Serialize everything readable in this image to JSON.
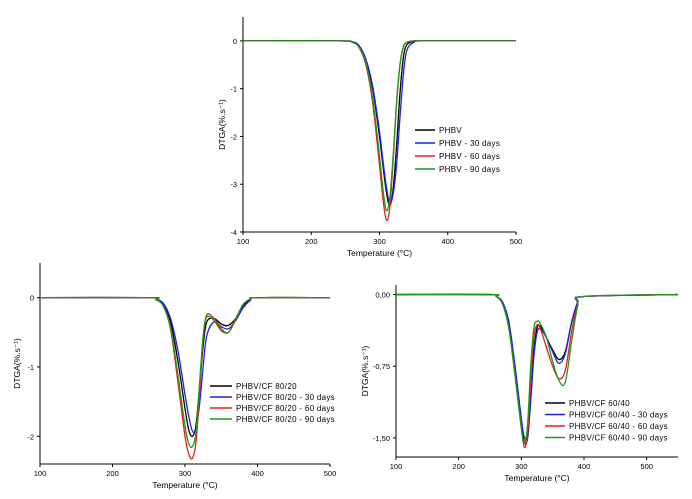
{
  "colors": {
    "black": "#000000",
    "blue": "#1f1fe0",
    "red": "#e3201b",
    "green": "#1a9a1a"
  },
  "chart_data": [
    {
      "type": "line",
      "xlabel": "Temperature (°C)",
      "ylabel": "DTGA(%.s⁻¹)",
      "xlim": [
        100,
        500
      ],
      "ylim": [
        -4,
        0.5
      ],
      "xticks": [
        100,
        200,
        300,
        400,
        500
      ],
      "yticks": [
        0,
        -1,
        -2,
        -3,
        -4
      ],
      "xtick_labels": [
        "100",
        "200",
        "300",
        "400",
        "500"
      ],
      "ytick_labels": [
        "0",
        "-1",
        "-2",
        "-3",
        "-4"
      ],
      "legend_position": "center-right",
      "x": [
        100,
        240,
        260,
        270,
        280,
        290,
        300,
        305,
        310,
        315,
        320,
        325,
        330,
        335,
        340,
        350,
        360,
        400,
        500
      ],
      "series": [
        {
          "name": "PHBV",
          "color": "#000000",
          "values": [
            0,
            0,
            -0.02,
            -0.1,
            -0.4,
            -1.0,
            -2.0,
            -2.6,
            -3.15,
            -3.45,
            -3.1,
            -2.2,
            -1.1,
            -0.35,
            -0.08,
            -0.01,
            0,
            0,
            0
          ]
        },
        {
          "name": "PHBV - 30 days",
          "color": "#1f1fe0",
          "values": [
            0,
            0,
            -0.02,
            -0.1,
            -0.38,
            -0.95,
            -1.9,
            -2.5,
            -3.05,
            -3.4,
            -3.2,
            -2.6,
            -1.6,
            -0.7,
            -0.2,
            -0.03,
            0,
            0,
            0
          ]
        },
        {
          "name": "PHBV - 60 days",
          "color": "#e3201b",
          "values": [
            0,
            0,
            -0.03,
            -0.14,
            -0.5,
            -1.3,
            -2.6,
            -3.3,
            -3.75,
            -3.5,
            -2.5,
            -1.3,
            -0.5,
            -0.12,
            -0.03,
            0,
            0,
            0,
            0
          ]
        },
        {
          "name": "PHBV - 90 days",
          "color": "#1a9a1a",
          "values": [
            0,
            0,
            -0.03,
            -0.13,
            -0.45,
            -1.2,
            -2.4,
            -3.1,
            -3.55,
            -3.3,
            -2.4,
            -1.3,
            -0.5,
            -0.13,
            -0.03,
            0,
            0,
            0,
            0
          ]
        }
      ]
    },
    {
      "type": "line",
      "xlabel": "Temperature (°C)",
      "ylabel": "DTGA(%.s⁻¹)",
      "xlim": [
        100,
        500
      ],
      "ylim": [
        -2.4,
        0.5
      ],
      "xticks": [
        100,
        200,
        300,
        400,
        500
      ],
      "yticks": [
        0,
        -1,
        -2
      ],
      "xtick_labels": [
        "100",
        "200",
        "300",
        "400",
        "500"
      ],
      "ytick_labels": [
        "0",
        "-1",
        "-2"
      ],
      "legend_position": "center-right",
      "x": [
        100,
        250,
        260,
        270,
        280,
        290,
        300,
        305,
        310,
        315,
        320,
        325,
        330,
        340,
        350,
        360,
        370,
        380,
        390,
        400,
        500
      ],
      "series": [
        {
          "name": "PHBV/CF 80/20",
          "color": "#000000",
          "values": [
            0,
            0,
            -0.02,
            -0.1,
            -0.35,
            -0.9,
            -1.6,
            -1.9,
            -2.0,
            -1.85,
            -1.3,
            -0.7,
            -0.35,
            -0.3,
            -0.38,
            -0.4,
            -0.3,
            -0.12,
            -0.03,
            0,
            0
          ]
        },
        {
          "name": "PHBV/CF 80/20 - 30 days",
          "color": "#1f1fe0",
          "values": [
            0,
            0,
            -0.02,
            -0.08,
            -0.3,
            -0.75,
            -1.4,
            -1.7,
            -1.92,
            -1.9,
            -1.55,
            -1.0,
            -0.55,
            -0.35,
            -0.42,
            -0.45,
            -0.33,
            -0.15,
            -0.04,
            0,
            0
          ]
        },
        {
          "name": "PHBV/CF 80/20 - 60 days",
          "color": "#e3201b",
          "values": [
            0,
            0,
            -0.03,
            -0.12,
            -0.45,
            -1.2,
            -2.0,
            -2.25,
            -2.32,
            -2.1,
            -1.4,
            -0.6,
            -0.25,
            -0.3,
            -0.45,
            -0.5,
            -0.3,
            -0.1,
            -0.02,
            0,
            0
          ]
        },
        {
          "name": "PHBV/CF 80/20 - 90 days",
          "color": "#1a9a1a",
          "values": [
            0,
            0,
            -0.03,
            -0.12,
            -0.42,
            -1.1,
            -1.85,
            -2.1,
            -2.15,
            -1.95,
            -1.25,
            -0.55,
            -0.28,
            -0.33,
            -0.48,
            -0.5,
            -0.32,
            -0.1,
            -0.02,
            0,
            0
          ]
        }
      ]
    },
    {
      "type": "line",
      "xlabel": "Temperature (°C)",
      "ylabel": "DTGA(%.s⁻¹)",
      "xlim": [
        100,
        550
      ],
      "ylim": [
        -1.7,
        0.1
      ],
      "xticks": [
        100,
        200,
        300,
        400,
        500
      ],
      "yticks": [
        0,
        -0.75,
        -1.5
      ],
      "xtick_labels": [
        "100",
        "200",
        "300",
        "400",
        "500"
      ],
      "ytick_labels": [
        "0,00",
        "-0,75",
        "-1,50"
      ],
      "legend_position": "bottom-right",
      "x": [
        100,
        250,
        260,
        270,
        280,
        290,
        300,
        305,
        310,
        315,
        320,
        325,
        330,
        340,
        350,
        360,
        370,
        380,
        390,
        400,
        550
      ],
      "series": [
        {
          "name": "PHBV/CF 60/40",
          "color": "#000000",
          "values": [
            0,
            0,
            -0.02,
            -0.08,
            -0.3,
            -0.8,
            -1.35,
            -1.55,
            -1.5,
            -1.1,
            -0.6,
            -0.35,
            -0.33,
            -0.45,
            -0.58,
            -0.68,
            -0.6,
            -0.3,
            -0.08,
            -0.02,
            0
          ]
        },
        {
          "name": "PHBV/CF 60/40 - 30 days",
          "color": "#1f1fe0",
          "values": [
            0,
            0,
            -0.02,
            -0.08,
            -0.28,
            -0.75,
            -1.3,
            -1.5,
            -1.45,
            -1.1,
            -0.65,
            -0.4,
            -0.36,
            -0.45,
            -0.6,
            -0.72,
            -0.62,
            -0.3,
            -0.08,
            -0.02,
            0
          ]
        },
        {
          "name": "PHBV/CF 60/40 - 60 days",
          "color": "#e3201b",
          "values": [
            0,
            0,
            -0.02,
            -0.1,
            -0.35,
            -0.85,
            -1.4,
            -1.6,
            -1.45,
            -0.9,
            -0.45,
            -0.32,
            -0.35,
            -0.55,
            -0.75,
            -0.88,
            -0.8,
            -0.4,
            -0.1,
            -0.02,
            0
          ]
        },
        {
          "name": "PHBV/CF 60/40 - 90 days",
          "color": "#1a9a1a",
          "values": [
            0,
            0,
            -0.02,
            -0.1,
            -0.35,
            -0.85,
            -1.4,
            -1.55,
            -1.35,
            -0.75,
            -0.35,
            -0.28,
            -0.3,
            -0.45,
            -0.7,
            -0.9,
            -0.92,
            -0.5,
            -0.12,
            -0.02,
            0
          ]
        }
      ]
    }
  ]
}
